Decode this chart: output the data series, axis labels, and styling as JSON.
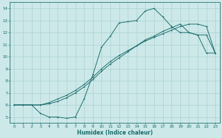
{
  "xlabel": "Humidex (Indice chaleur)",
  "bg_color": "#cce8e8",
  "grid_color": "#b0d4d4",
  "line_color": "#1a6b6b",
  "xlim": [
    -0.5,
    23.5
  ],
  "ylim": [
    4.5,
    14.5
  ],
  "xticks": [
    0,
    1,
    2,
    3,
    4,
    5,
    6,
    7,
    8,
    9,
    10,
    11,
    12,
    13,
    14,
    15,
    16,
    17,
    18,
    19,
    20,
    21,
    22,
    23
  ],
  "yticks": [
    5,
    6,
    7,
    8,
    9,
    10,
    11,
    12,
    13,
    14
  ],
  "curve1_x": [
    0,
    1,
    2,
    3,
    4,
    5,
    6,
    7,
    8,
    9,
    10,
    11,
    12,
    13,
    14,
    15,
    16,
    17,
    18,
    19,
    20,
    21,
    22,
    23
  ],
  "curve1_y": [
    6.0,
    6.0,
    6.0,
    5.3,
    5.0,
    5.0,
    4.9,
    5.0,
    6.5,
    8.5,
    10.8,
    11.7,
    12.8,
    12.9,
    13.0,
    13.8,
    14.0,
    13.3,
    12.5,
    12.0,
    12.0,
    11.8,
    10.3,
    10.3
  ],
  "curve2_x": [
    0,
    1,
    2,
    3,
    4,
    5,
    6,
    7,
    8,
    9,
    10,
    11,
    12,
    13,
    14,
    15,
    16,
    17,
    18,
    19,
    20,
    21,
    22,
    23
  ],
  "curve2_y": [
    6.0,
    6.0,
    6.0,
    6.0,
    6.1,
    6.3,
    6.6,
    7.0,
    7.5,
    8.1,
    8.8,
    9.4,
    9.9,
    10.4,
    10.9,
    11.4,
    11.7,
    12.1,
    12.4,
    12.7,
    12.0,
    11.8,
    11.8,
    10.3
  ],
  "curve3_x": [
    0,
    1,
    2,
    3,
    4,
    5,
    6,
    7,
    8,
    9,
    10,
    11,
    12,
    13,
    14,
    15,
    16,
    17,
    18,
    19,
    20,
    21,
    22,
    23
  ],
  "curve3_y": [
    6.0,
    6.0,
    6.0,
    6.0,
    6.2,
    6.5,
    6.8,
    7.2,
    7.7,
    8.3,
    9.0,
    9.6,
    10.1,
    10.5,
    10.9,
    11.3,
    11.6,
    11.9,
    12.2,
    12.5,
    12.7,
    12.7,
    12.5,
    10.3
  ]
}
